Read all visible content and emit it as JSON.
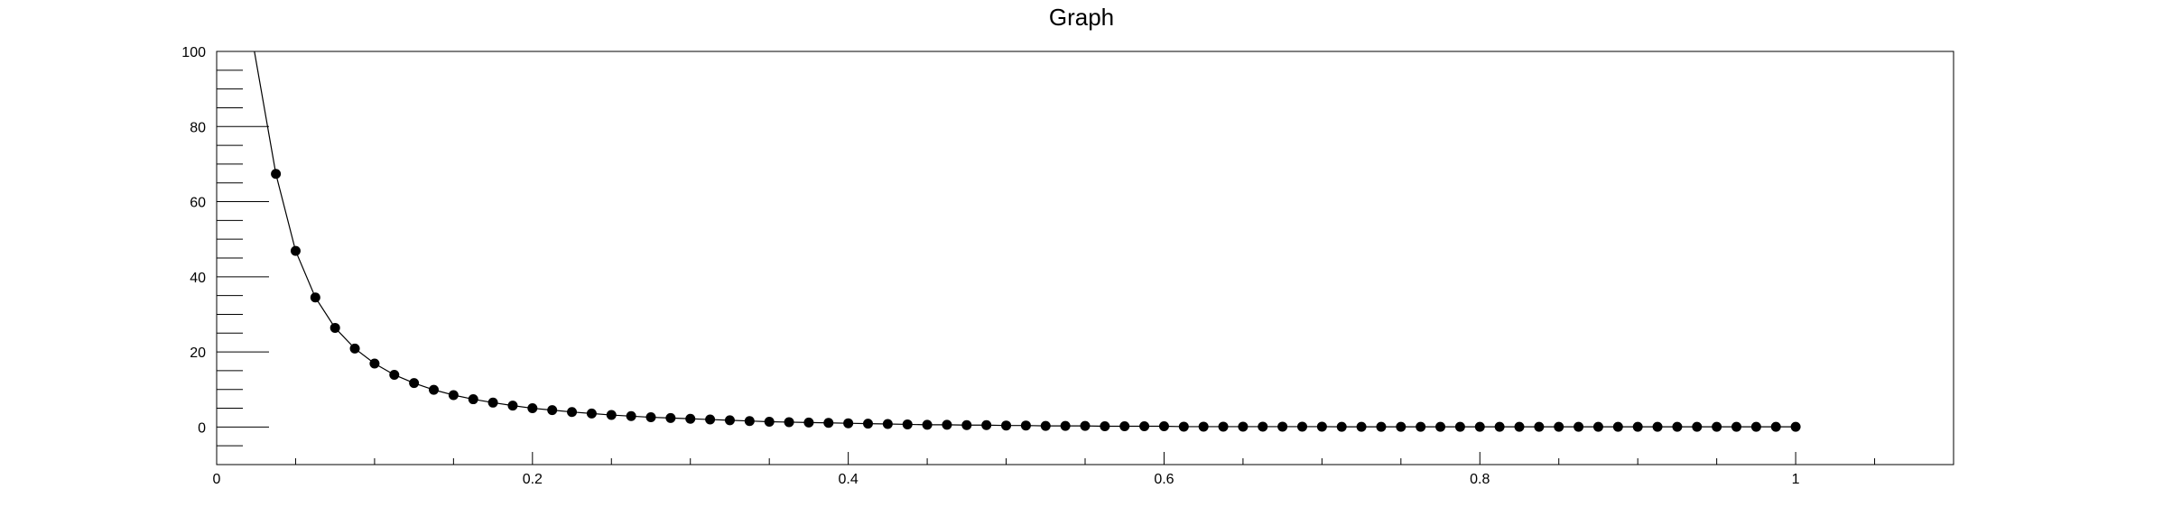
{
  "chart_data": {
    "type": "scatter",
    "title": "Graph",
    "xlabel": "",
    "ylabel": "",
    "xlim": [
      0,
      1.1
    ],
    "ylim": [
      -10,
      100
    ],
    "grid": false,
    "legend": "none",
    "x_ticks": [
      {
        "value": 0,
        "label": "0"
      },
      {
        "value": 0.2,
        "label": "0.2"
      },
      {
        "value": 0.4,
        "label": "0.4"
      },
      {
        "value": 0.6,
        "label": "0.6"
      },
      {
        "value": 0.8,
        "label": "0.8"
      },
      {
        "value": 1,
        "label": "1"
      }
    ],
    "y_ticks": [
      {
        "value": 0,
        "label": "0"
      },
      {
        "value": 20,
        "label": "20"
      },
      {
        "value": 40,
        "label": "40"
      },
      {
        "value": 60,
        "label": "60"
      },
      {
        "value": 80,
        "label": "80"
      },
      {
        "value": 100,
        "label": "100"
      }
    ],
    "series": [
      {
        "marker_color": "#000000",
        "line_color": "#000000",
        "x": [
          0.0375,
          0.05,
          0.0625,
          0.075,
          0.0875,
          0.1,
          0.1125,
          0.125,
          0.1375,
          0.15,
          0.1625,
          0.175,
          0.1875,
          0.2,
          0.2125,
          0.225,
          0.2375,
          0.25,
          0.2625,
          0.275,
          0.2875,
          0.3,
          0.3125,
          0.325,
          0.3375,
          0.35,
          0.3625,
          0.375,
          0.3875,
          0.4,
          0.4125,
          0.425,
          0.4375,
          0.45,
          0.4625,
          0.475,
          0.4875,
          0.5,
          0.5125,
          0.525,
          0.5375,
          0.55,
          0.5625,
          0.575,
          0.5875,
          0.6,
          0.6125,
          0.625,
          0.6375,
          0.65,
          0.6625,
          0.675,
          0.6875,
          0.7,
          0.7125,
          0.725,
          0.7375,
          0.75,
          0.7625,
          0.775,
          0.7875,
          0.8,
          0.8125,
          0.825,
          0.8375,
          0.85,
          0.8625,
          0.875,
          0.8875,
          0.9,
          0.9125,
          0.925,
          0.9375,
          0.95,
          0.9625,
          0.975,
          0.9875,
          1.0
        ],
        "y": [
          67.4,
          46.9,
          34.5,
          26.4,
          20.9,
          16.9,
          13.9,
          11.7,
          9.9,
          8.5,
          7.4,
          6.5,
          5.7,
          5.0,
          4.5,
          4.0,
          3.6,
          3.2,
          2.9,
          2.6,
          2.4,
          2.2,
          2.0,
          1.8,
          1.6,
          1.4,
          1.3,
          1.2,
          1.1,
          1.0,
          0.9,
          0.8,
          0.7,
          0.6,
          0.6,
          0.5,
          0.5,
          0.4,
          0.4,
          0.3,
          0.3,
          0.3,
          0.2,
          0.2,
          0.2,
          0.2,
          0.1,
          0.1,
          0.1,
          0.1,
          0.1,
          0.1,
          0.1,
          0.1,
          0.05,
          0.05,
          0.05,
          0.05,
          0.05,
          0.05,
          0.05,
          0.05,
          0.05,
          0.05,
          0.05,
          0.05,
          0.05,
          0.05,
          0.05,
          0.05,
          0.05,
          0.05,
          0.05,
          0.05,
          0.05,
          0.05,
          0.05,
          0.05
        ]
      }
    ]
  }
}
